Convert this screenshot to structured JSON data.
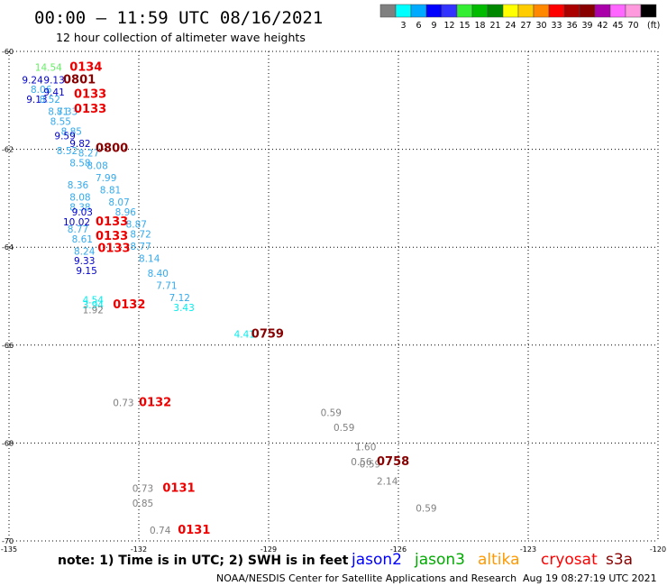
{
  "header": {
    "title": "00:00 — 11:59 UTC 08/16/2021",
    "subtitle": "12 hour collection of altimeter wave heights"
  },
  "legend": {
    "unit": "(ft)",
    "colors": [
      "#808080",
      "#00ffff",
      "#00aaff",
      "#0000ff",
      "#3333ff",
      "#33ee33",
      "#00bb00",
      "#008800",
      "#ffff00",
      "#ffcc00",
      "#ff8800",
      "#ff0000",
      "#aa0000",
      "#880000",
      "#aa00aa",
      "#ff66ff",
      "#ff99dd",
      "#000000"
    ],
    "labels": [
      "3",
      "6",
      "9",
      "12",
      "15",
      "18",
      "21",
      "24",
      "27",
      "30",
      "33",
      "36",
      "39",
      "42",
      "45",
      "70"
    ]
  },
  "notes": {
    "note_text": "note: 1) Time is in UTC; 2) SWH is in feet",
    "footer_left": "NOAA/NESDIS Center for Satellite Applications and Research",
    "footer_right": "Aug 19 08:27:19 UTC 2021"
  },
  "missions": [
    {
      "name": "jason2",
      "color": "#0000ff"
    },
    {
      "name": "jason3",
      "color": "#00aa00"
    },
    {
      "name": "altika",
      "color": "#ff9900"
    },
    {
      "name": "cryosat",
      "color": "#ff0000"
    },
    {
      "name": "s3a",
      "color": "#880000"
    }
  ],
  "chart_data": {
    "type": "scatter",
    "title": "00:00 — 11:59 UTC 08/16/2021",
    "subtitle": "12 hour collection of altimeter wave heights",
    "xlim": [
      -135,
      -120
    ],
    "ylim": [
      -70,
      -60
    ],
    "x_ticks": [
      -135,
      -132,
      -129,
      -126,
      -123,
      -120
    ],
    "y_ticks": [
      -60,
      -62,
      -64,
      -66,
      -68,
      -70
    ],
    "x_tick_labels": [
      "-135",
      "-132",
      "-129",
      "-126",
      "-123",
      "-120"
    ],
    "y_tick_labels": [
      "-60",
      "-62",
      "-64",
      "-66",
      "-68",
      "-70"
    ],
    "grid": true,
    "wave_heights": [
      {
        "lon": -134.4,
        "lat": -60.4,
        "v": "14.54",
        "c": "#66ee66"
      },
      {
        "lon": -134.7,
        "lat": -60.65,
        "v": "9.24",
        "c": "#0000cc"
      },
      {
        "lon": -134.2,
        "lat": -60.65,
        "v": "9.13",
        "c": "#0000cc"
      },
      {
        "lon": -134.5,
        "lat": -60.85,
        "v": "8.06",
        "c": "#33aaee"
      },
      {
        "lon": -134.2,
        "lat": -60.9,
        "v": "9.41",
        "c": "#0000cc"
      },
      {
        "lon": -134.6,
        "lat": -61.05,
        "v": "9.13",
        "c": "#0000cc"
      },
      {
        "lon": -134.3,
        "lat": -61.05,
        "v": "8.52",
        "c": "#33aaee"
      },
      {
        "lon": -134.1,
        "lat": -61.3,
        "v": "8.71",
        "c": "#33aaee"
      },
      {
        "lon": -133.9,
        "lat": -61.3,
        "v": "8.33",
        "c": "#33aaee"
      },
      {
        "lon": -134.05,
        "lat": -61.5,
        "v": "8.55",
        "c": "#33aaee"
      },
      {
        "lon": -133.8,
        "lat": -61.7,
        "v": "8.85",
        "c": "#33aaee"
      },
      {
        "lon": -133.95,
        "lat": -61.8,
        "v": "9.59",
        "c": "#0000cc"
      },
      {
        "lon": -133.6,
        "lat": -61.95,
        "v": "9.82",
        "c": "#0000cc"
      },
      {
        "lon": -133.9,
        "lat": -62.1,
        "v": "8.52",
        "c": "#33aaee"
      },
      {
        "lon": -133.4,
        "lat": -62.15,
        "v": "8.27",
        "c": "#33aaee"
      },
      {
        "lon": -133.6,
        "lat": -62.35,
        "v": "8.58",
        "c": "#33aaee"
      },
      {
        "lon": -133.2,
        "lat": -62.4,
        "v": "8.08",
        "c": "#33aaee"
      },
      {
        "lon": -133.0,
        "lat": -62.65,
        "v": "7.99",
        "c": "#33aaee"
      },
      {
        "lon": -133.65,
        "lat": -62.8,
        "v": "8.36",
        "c": "#33aaee"
      },
      {
        "lon": -132.9,
        "lat": -62.9,
        "v": "8.81",
        "c": "#33aaee"
      },
      {
        "lon": -133.6,
        "lat": -63.05,
        "v": "8.08",
        "c": "#33aaee"
      },
      {
        "lon": -132.7,
        "lat": -63.15,
        "v": "8.07",
        "c": "#33aaee"
      },
      {
        "lon": -133.6,
        "lat": -63.25,
        "v": "8.38",
        "c": "#33aaee"
      },
      {
        "lon": -133.55,
        "lat": -63.35,
        "v": "9.03",
        "c": "#0000cc"
      },
      {
        "lon": -132.55,
        "lat": -63.35,
        "v": "8.96",
        "c": "#33aaee"
      },
      {
        "lon": -133.75,
        "lat": -63.55,
        "v": "10.02",
        "c": "#0000cc"
      },
      {
        "lon": -132.3,
        "lat": -63.6,
        "v": "8.87",
        "c": "#33aaee"
      },
      {
        "lon": -133.65,
        "lat": -63.7,
        "v": "8.77",
        "c": "#33aaee"
      },
      {
        "lon": -132.2,
        "lat": -63.8,
        "v": "8.72",
        "c": "#33aaee"
      },
      {
        "lon": -133.55,
        "lat": -63.9,
        "v": "8.61",
        "c": "#33aaee"
      },
      {
        "lon": -132.2,
        "lat": -64.05,
        "v": "8.77",
        "c": "#33aaee"
      },
      {
        "lon": -133.5,
        "lat": -64.15,
        "v": "8.24",
        "c": "#33aaee"
      },
      {
        "lon": -132.0,
        "lat": -64.3,
        "v": "8.14",
        "c": "#33aaee"
      },
      {
        "lon": -133.5,
        "lat": -64.35,
        "v": "9.33",
        "c": "#0000cc"
      },
      {
        "lon": -133.45,
        "lat": -64.55,
        "v": "9.15",
        "c": "#0000cc"
      },
      {
        "lon": -131.8,
        "lat": -64.6,
        "v": "8.40",
        "c": "#33aaee"
      },
      {
        "lon": -131.6,
        "lat": -64.85,
        "v": "7.71",
        "c": "#33aaee"
      },
      {
        "lon": -131.3,
        "lat": -65.1,
        "v": "7.12",
        "c": "#33aaee"
      },
      {
        "lon": -133.3,
        "lat": -65.15,
        "v": "4.54",
        "c": "#00eeee"
      },
      {
        "lon": -133.3,
        "lat": -65.25,
        "v": "3.94",
        "c": "#00eeee"
      },
      {
        "lon": -133.3,
        "lat": -65.35,
        "v": "1.92",
        "c": "#808080"
      },
      {
        "lon": -131.2,
        "lat": -65.3,
        "v": "3.43",
        "c": "#00eeee"
      },
      {
        "lon": -129.8,
        "lat": -65.85,
        "v": "4.41",
        "c": "#00eeee"
      },
      {
        "lon": -132.6,
        "lat": -67.25,
        "v": "0.73",
        "c": "#808080"
      },
      {
        "lon": -127.8,
        "lat": -67.45,
        "v": "0.59",
        "c": "#808080"
      },
      {
        "lon": -127.5,
        "lat": -67.75,
        "v": "0.59",
        "c": "#808080"
      },
      {
        "lon": -127.0,
        "lat": -68.15,
        "v": "1.60",
        "c": "#808080"
      },
      {
        "lon": -127.1,
        "lat": -68.45,
        "v": "0.56",
        "c": "#808080"
      },
      {
        "lon": -126.9,
        "lat": -68.5,
        "v": "0.59",
        "c": "#808080"
      },
      {
        "lon": -126.5,
        "lat": -68.85,
        "v": "2.14",
        "c": "#808080"
      },
      {
        "lon": -132.15,
        "lat": -69.0,
        "v": "0.73",
        "c": "#808080"
      },
      {
        "lon": -132.15,
        "lat": -69.3,
        "v": "0.85",
        "c": "#808080"
      },
      {
        "lon": -125.6,
        "lat": -69.4,
        "v": "0.59",
        "c": "#808080"
      },
      {
        "lon": -131.75,
        "lat": -69.85,
        "v": "0.74",
        "c": "#808080"
      }
    ],
    "time_labels": [
      {
        "lon": -133.6,
        "lat": -60.4,
        "t": "0134",
        "c": "#ee0000"
      },
      {
        "lon": -133.75,
        "lat": -60.65,
        "t": "0801",
        "c": "#880000"
      },
      {
        "lon": -133.5,
        "lat": -60.95,
        "t": "0133",
        "c": "#ee0000"
      },
      {
        "lon": -133.5,
        "lat": -61.25,
        "t": "0133",
        "c": "#ee0000"
      },
      {
        "lon": -133.0,
        "lat": -62.05,
        "t": "0800",
        "c": "#880000"
      },
      {
        "lon": -133.0,
        "lat": -63.55,
        "t": "0133",
        "c": "#ee0000"
      },
      {
        "lon": -133.0,
        "lat": -63.85,
        "t": "0133",
        "c": "#ee0000"
      },
      {
        "lon": -132.95,
        "lat": -64.1,
        "t": "0133",
        "c": "#ee0000"
      },
      {
        "lon": -132.6,
        "lat": -65.25,
        "t": "0132",
        "c": "#ee0000"
      },
      {
        "lon": -129.4,
        "lat": -65.85,
        "t": "0759",
        "c": "#880000"
      },
      {
        "lon": -132.0,
        "lat": -67.25,
        "t": "0132",
        "c": "#ee0000"
      },
      {
        "lon": -126.5,
        "lat": -68.45,
        "t": "0758",
        "c": "#880000"
      },
      {
        "lon": -131.45,
        "lat": -69.0,
        "t": "0131",
        "c": "#ee0000"
      },
      {
        "lon": -131.1,
        "lat": -69.85,
        "t": "0131",
        "c": "#ee0000"
      }
    ]
  }
}
